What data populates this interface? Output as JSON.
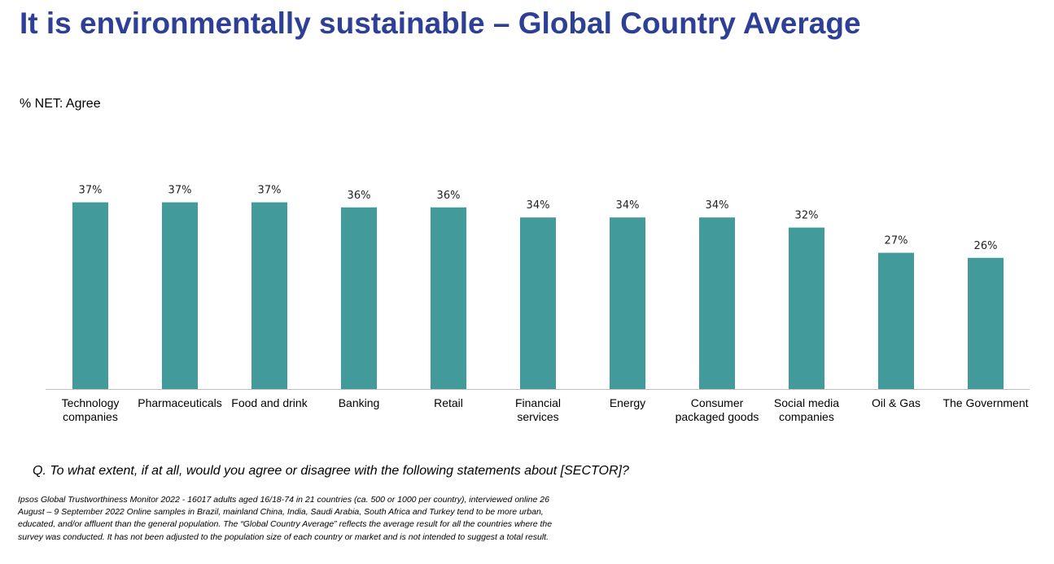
{
  "title": "It is environmentally sustainable – Global Country Average",
  "subtitle": "% NET: Agree",
  "question": "Q. To what extent, if at all, would you agree or disagree with the following statements about [SECTOR]?",
  "footnote": "Ipsos Global Trustworthiness Monitor 2022 - 16017 adults aged 16/18-74 in 21 countries (ca. 500 or 1000 per country), interviewed online 26 August – 9 September 2022 Online samples in Brazil, mainland China, India, Saudi Arabia, South Africa and Turkey tend to be more urban, educated, and/or affluent than the general population. The “Global Country Average” reflects the average result for all the countries where the survey was conducted. It has not been adjusted to the population size of each country or market and is not intended to suggest a total result.",
  "chart_data": {
    "type": "bar",
    "categories": [
      "Technology companies",
      "Pharmaceuticals",
      "Food and drink",
      "Banking",
      "Retail",
      "Financial services",
      "Energy",
      "Consumer packaged goods",
      "Social media companies",
      "Oil & Gas",
      "The Government"
    ],
    "category_lines": [
      [
        "Technology",
        "companies"
      ],
      [
        "Pharmaceuticals"
      ],
      [
        "Food and drink"
      ],
      [
        "Banking"
      ],
      [
        "Retail"
      ],
      [
        "Financial",
        "services"
      ],
      [
        "Energy"
      ],
      [
        "Consumer",
        "packaged goods"
      ],
      [
        "Social media",
        "companies"
      ],
      [
        "Oil & Gas"
      ],
      [
        "The Government"
      ]
    ],
    "values": [
      37,
      37,
      37,
      36,
      36,
      34,
      34,
      34,
      32,
      27,
      26
    ],
    "data_labels": [
      "37%",
      "37%",
      "37%",
      "36%",
      "36%",
      "34%",
      "34%",
      "34%",
      "32%",
      "27%",
      "26%"
    ],
    "unit": "%",
    "ylim": [
      0,
      40
    ],
    "grid": false,
    "bar_color": "#429a9b",
    "title_color": "#2e3f96"
  }
}
